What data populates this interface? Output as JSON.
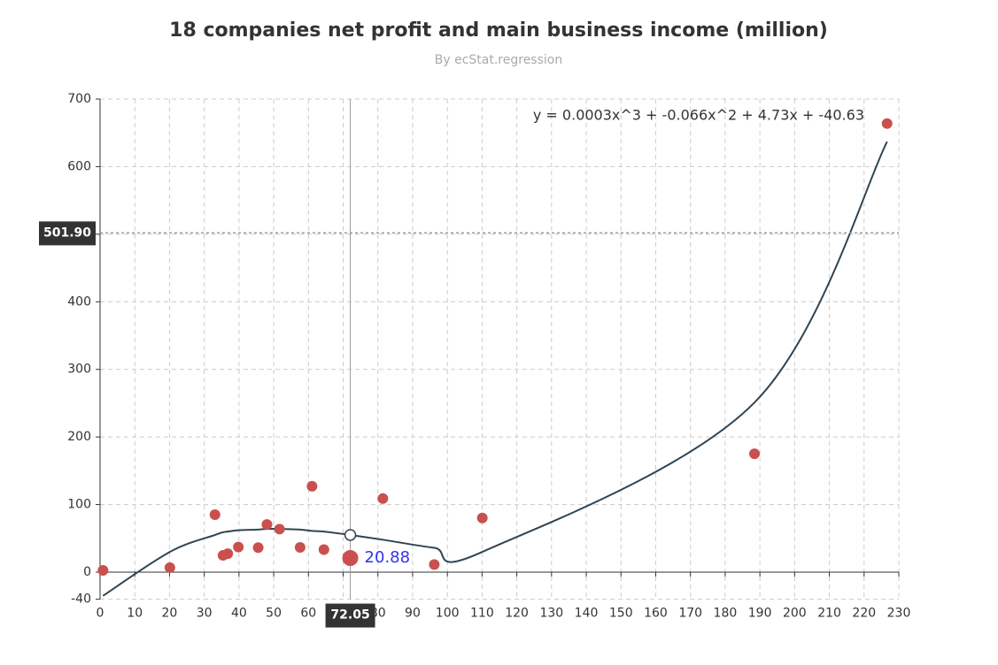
{
  "chart_data": {
    "type": "scatter",
    "title": "18 companies net profit and main business income (million)",
    "subtitle": "By ecStat.regression",
    "color": "#c9504f",
    "x": [
      96.24,
      33.09,
      57.6,
      36.77,
      20.1,
      45.53,
      110.07,
      72.05,
      39.82,
      48.05,
      0.85,
      51.66,
      61.04,
      64.46,
      226.62,
      188.44,
      81.43,
      35.41
    ],
    "values": [
      11.35,
      85.11,
      36.61,
      27.26,
      6.72,
      36.37,
      80.13,
      20.88,
      37.15,
      70.5,
      2.57,
      63.7,
      127.13,
      33.33,
      663.77,
      175.16,
      108.9,
      24.85
    ],
    "highlight": 7,
    "regression": {
      "equation": "y = 0.0003x^3 + -0.066x^2 + 4.73x + -40.63",
      "color": "#2f4554",
      "x": [
        0.85,
        20.1,
        33.09,
        35.41,
        36.77,
        39.82,
        45.53,
        48.05,
        51.66,
        57.6,
        61.04,
        64.46,
        72.05,
        81.43,
        96.24,
        110.07,
        188.44,
        226.62
      ],
      "values": [
        -35,
        30,
        55,
        59,
        60,
        62,
        63,
        64,
        64,
        63,
        61,
        60,
        55,
        48,
        36,
        30,
        251,
        637
      ]
    },
    "xlim": [
      0,
      230
    ],
    "xticks": [
      0,
      10,
      20,
      30,
      40,
      50,
      60,
      70,
      80,
      90,
      100,
      110,
      120,
      130,
      140,
      150,
      160,
      170,
      180,
      190,
      200,
      210,
      220,
      230
    ],
    "ylim": [
      -40,
      700
    ],
    "yticks": [
      -40,
      0,
      100,
      200,
      300,
      400,
      500,
      600,
      700
    ],
    "grid": true,
    "axis_pointer": {
      "x": 72.05,
      "y": {
        "value": 501.9,
        "label": "501.90"
      }
    }
  }
}
